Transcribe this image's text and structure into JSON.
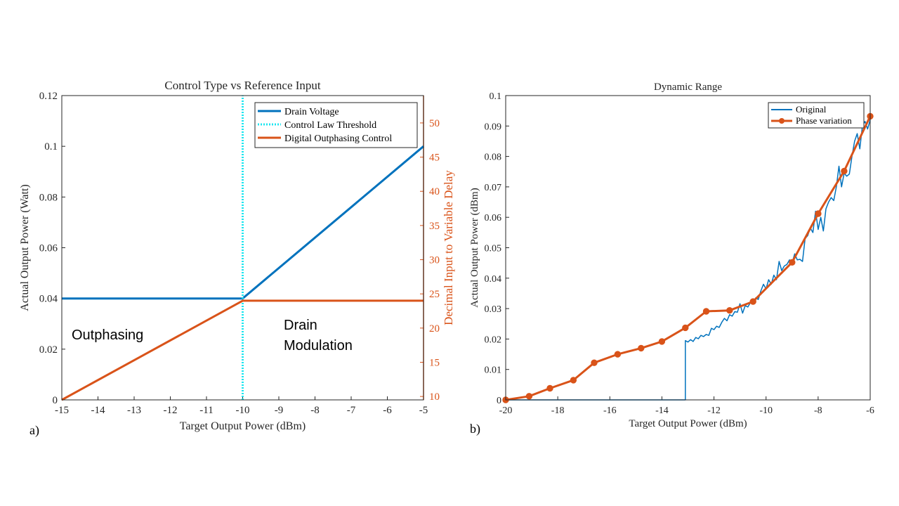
{
  "chart_data": [
    {
      "type": "line",
      "panel_label": "a)",
      "title": "Control Type vs Reference Input",
      "xlabel": "Target Output Power (dBm)",
      "ylabel": "Actual Output Power (Watt)",
      "y2label": "Decimal Input to Variable Delay",
      "xlim": [
        -15,
        -5
      ],
      "ylim": [
        0,
        0.12
      ],
      "y2lim": [
        9.5,
        54
      ],
      "xticks": [
        "-15",
        "-14",
        "-13",
        "-12",
        "-11",
        "-10",
        "-9",
        "-8",
        "-7",
        "-6",
        "-5"
      ],
      "yticks": [
        "0",
        "0.02",
        "0.04",
        "0.06",
        "0.08",
        "0.1",
        "0.12"
      ],
      "y2ticks": [
        "10",
        "15",
        "20",
        "25",
        "30",
        "35",
        "40",
        "45",
        "50"
      ],
      "legend_position": "top-right",
      "annotations": [
        "Outphasing",
        "Drain",
        "Modulation"
      ],
      "series": [
        {
          "name": "Drain Voltage",
          "axis": "left",
          "color": "#0072BD",
          "style": "solid",
          "x": [
            -15,
            -10,
            -5
          ],
          "y": [
            0.04,
            0.04,
            0.1
          ]
        },
        {
          "name": "Control Law Threshold",
          "axis": "left",
          "color": "#1EE6F0",
          "style": "dotted",
          "x": [
            -10,
            -10
          ],
          "y": [
            0,
            0.12
          ]
        },
        {
          "name": "Digital Outphasing Control",
          "axis": "right",
          "color": "#D95319",
          "style": "solid",
          "x": [
            -15,
            -10,
            -5
          ],
          "y": [
            9.5,
            24,
            24
          ]
        }
      ]
    },
    {
      "type": "line",
      "panel_label": "b)",
      "title": "Dynamic Range",
      "xlabel": "Target Output Power (dBm)",
      "ylabel": "Actual Output Power (dBm)",
      "xlim": [
        -20,
        -6
      ],
      "ylim": [
        0,
        0.1
      ],
      "xticks": [
        "-20",
        "-18",
        "-16",
        "-14",
        "-12",
        "-10",
        "-8",
        "-6"
      ],
      "yticks": [
        "0",
        "0.01",
        "0.02",
        "0.03",
        "0.04",
        "0.05",
        "0.06",
        "0.07",
        "0.08",
        "0.09",
        "0.1"
      ],
      "legend_position": "top-right",
      "series": [
        {
          "name": "Original",
          "color": "#0072BD",
          "marker": "none",
          "x": [
            -20,
            -13.1,
            -13.1,
            -13.0,
            -12.9,
            -12.8,
            -12.7,
            -12.6,
            -12.5,
            -12.4,
            -12.3,
            -12.2,
            -12.1,
            -12.0,
            -11.9,
            -11.8,
            -11.7,
            -11.6,
            -11.5,
            -11.4,
            -11.3,
            -11.2,
            -11.1,
            -11.0,
            -10.9,
            -10.8,
            -10.7,
            -10.6,
            -10.5,
            -10.4,
            -10.3,
            -10.2,
            -10.1,
            -10.0,
            -9.9,
            -9.8,
            -9.7,
            -9.6,
            -9.5,
            -9.4,
            -9.3,
            -9.2,
            -9.1,
            -9.0,
            -8.9,
            -8.8,
            -8.7,
            -8.6,
            -8.5,
            -8.4,
            -8.3,
            -8.2,
            -8.1,
            -8.0,
            -7.9,
            -7.8,
            -7.7,
            -7.6,
            -7.5,
            -7.4,
            -7.3,
            -7.2,
            -7.1,
            -7.0,
            -6.9,
            -6.8,
            -6.7,
            -6.6,
            -6.5,
            -6.4,
            -6.3,
            -6.2,
            -6.1,
            -6.0
          ],
          "y": [
            0,
            0,
            0.0195,
            0.019,
            0.0198,
            0.0192,
            0.0205,
            0.0201,
            0.0212,
            0.0208,
            0.0215,
            0.0212,
            0.0235,
            0.0231,
            0.0242,
            0.0238,
            0.0255,
            0.0268,
            0.026,
            0.028,
            0.0275,
            0.029,
            0.0288,
            0.0316,
            0.0285,
            0.031,
            0.0305,
            0.032,
            0.0315,
            0.0335,
            0.033,
            0.0358,
            0.038,
            0.0365,
            0.0395,
            0.038,
            0.041,
            0.0395,
            0.0455,
            0.0425,
            0.044,
            0.0445,
            0.046,
            0.045,
            0.048,
            0.046,
            0.0462,
            0.0455,
            0.053,
            0.054,
            0.0565,
            0.055,
            0.062,
            0.056,
            0.06,
            0.0555,
            0.0628,
            0.065,
            0.0665,
            0.0655,
            0.07,
            0.0768,
            0.07,
            0.0745,
            0.0735,
            0.0742,
            0.08,
            0.085,
            0.0875,
            0.0825,
            0.09,
            0.0915,
            0.089,
            0.092
          ]
        },
        {
          "name": "Phase variation",
          "color": "#D95319",
          "marker": "circle",
          "x": [
            -20,
            -19.1,
            -18.3,
            -17.4,
            -16.6,
            -15.7,
            -14.8,
            -14.0,
            -13.1,
            -12.3,
            -11.4,
            -10.5,
            -9.0,
            -8.0,
            -7.0,
            -6.0
          ],
          "y": [
            0,
            0.0012,
            0.0038,
            0.0065,
            0.0122,
            0.015,
            0.017,
            0.0192,
            0.0237,
            0.0291,
            0.0294,
            0.0323,
            0.0452,
            0.0612,
            0.0752,
            0.0932
          ]
        }
      ]
    }
  ]
}
